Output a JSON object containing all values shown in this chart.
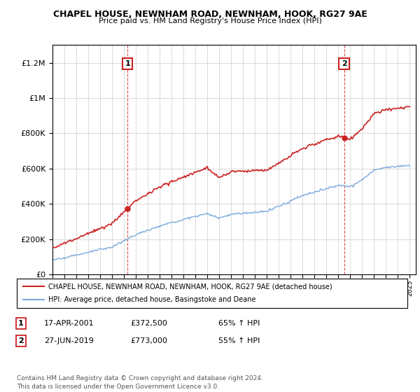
{
  "title_line1": "CHAPEL HOUSE, NEWNHAM ROAD, NEWNHAM, HOOK, RG27 9AE",
  "title_line2": "Price paid vs. HM Land Registry's House Price Index (HPI)",
  "ylim": [
    0,
    1300000
  ],
  "yticks": [
    0,
    200000,
    400000,
    600000,
    800000,
    1000000,
    1200000
  ],
  "x_start_year": 1995,
  "x_end_year": 2025,
  "hpi_color": "#7aaadd",
  "price_color": "#cc2222",
  "sale1_year": 2001.3,
  "sale1_price": 372500,
  "sale2_year": 2019.48,
  "sale2_price": 773000,
  "sale1_label": "1",
  "sale2_label": "2",
  "legend_house": "CHAPEL HOUSE, NEWNHAM ROAD, NEWNHAM, HOOK, RG27 9AE (detached house)",
  "legend_hpi": "HPI: Average price, detached house, Basingstoke and Deane",
  "table_row1": [
    "1",
    "17-APR-2001",
    "£372,500",
    "65% ↑ HPI"
  ],
  "table_row2": [
    "2",
    "27-JUN-2019",
    "£773,000",
    "55% ↑ HPI"
  ],
  "footer": "Contains HM Land Registry data © Crown copyright and database right 2024.\nThis data is licensed under the Open Government Licence v3.0.",
  "background_color": "#ffffff",
  "grid_color": "#cccccc"
}
